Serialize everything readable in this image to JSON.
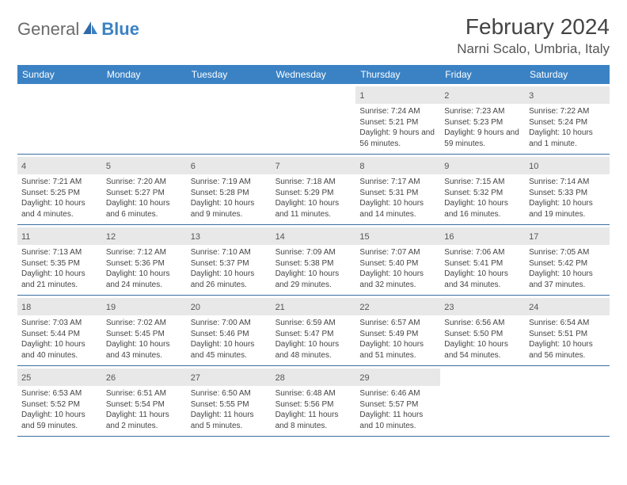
{
  "brand": {
    "part1": "General",
    "part2": "Blue"
  },
  "title": "February 2024",
  "location": "Narni Scalo, Umbria, Italy",
  "colors": {
    "header_bg": "#3b82c4",
    "daynum_bg": "#e8e8e8",
    "week_border": "#3b6fa0",
    "logo_gray": "#6b6b6b",
    "logo_blue": "#3b82c4",
    "text": "#444444"
  },
  "day_names": [
    "Sunday",
    "Monday",
    "Tuesday",
    "Wednesday",
    "Thursday",
    "Friday",
    "Saturday"
  ],
  "weeks": [
    [
      {
        "empty": true
      },
      {
        "empty": true
      },
      {
        "empty": true
      },
      {
        "empty": true
      },
      {
        "n": "1",
        "sr": "7:24 AM",
        "ss": "5:21 PM",
        "dl": "9 hours and 56 minutes."
      },
      {
        "n": "2",
        "sr": "7:23 AM",
        "ss": "5:23 PM",
        "dl": "9 hours and 59 minutes."
      },
      {
        "n": "3",
        "sr": "7:22 AM",
        "ss": "5:24 PM",
        "dl": "10 hours and 1 minute."
      }
    ],
    [
      {
        "n": "4",
        "sr": "7:21 AM",
        "ss": "5:25 PM",
        "dl": "10 hours and 4 minutes."
      },
      {
        "n": "5",
        "sr": "7:20 AM",
        "ss": "5:27 PM",
        "dl": "10 hours and 6 minutes."
      },
      {
        "n": "6",
        "sr": "7:19 AM",
        "ss": "5:28 PM",
        "dl": "10 hours and 9 minutes."
      },
      {
        "n": "7",
        "sr": "7:18 AM",
        "ss": "5:29 PM",
        "dl": "10 hours and 11 minutes."
      },
      {
        "n": "8",
        "sr": "7:17 AM",
        "ss": "5:31 PM",
        "dl": "10 hours and 14 minutes."
      },
      {
        "n": "9",
        "sr": "7:15 AM",
        "ss": "5:32 PM",
        "dl": "10 hours and 16 minutes."
      },
      {
        "n": "10",
        "sr": "7:14 AM",
        "ss": "5:33 PM",
        "dl": "10 hours and 19 minutes."
      }
    ],
    [
      {
        "n": "11",
        "sr": "7:13 AM",
        "ss": "5:35 PM",
        "dl": "10 hours and 21 minutes."
      },
      {
        "n": "12",
        "sr": "7:12 AM",
        "ss": "5:36 PM",
        "dl": "10 hours and 24 minutes."
      },
      {
        "n": "13",
        "sr": "7:10 AM",
        "ss": "5:37 PM",
        "dl": "10 hours and 26 minutes."
      },
      {
        "n": "14",
        "sr": "7:09 AM",
        "ss": "5:38 PM",
        "dl": "10 hours and 29 minutes."
      },
      {
        "n": "15",
        "sr": "7:07 AM",
        "ss": "5:40 PM",
        "dl": "10 hours and 32 minutes."
      },
      {
        "n": "16",
        "sr": "7:06 AM",
        "ss": "5:41 PM",
        "dl": "10 hours and 34 minutes."
      },
      {
        "n": "17",
        "sr": "7:05 AM",
        "ss": "5:42 PM",
        "dl": "10 hours and 37 minutes."
      }
    ],
    [
      {
        "n": "18",
        "sr": "7:03 AM",
        "ss": "5:44 PM",
        "dl": "10 hours and 40 minutes."
      },
      {
        "n": "19",
        "sr": "7:02 AM",
        "ss": "5:45 PM",
        "dl": "10 hours and 43 minutes."
      },
      {
        "n": "20",
        "sr": "7:00 AM",
        "ss": "5:46 PM",
        "dl": "10 hours and 45 minutes."
      },
      {
        "n": "21",
        "sr": "6:59 AM",
        "ss": "5:47 PM",
        "dl": "10 hours and 48 minutes."
      },
      {
        "n": "22",
        "sr": "6:57 AM",
        "ss": "5:49 PM",
        "dl": "10 hours and 51 minutes."
      },
      {
        "n": "23",
        "sr": "6:56 AM",
        "ss": "5:50 PM",
        "dl": "10 hours and 54 minutes."
      },
      {
        "n": "24",
        "sr": "6:54 AM",
        "ss": "5:51 PM",
        "dl": "10 hours and 56 minutes."
      }
    ],
    [
      {
        "n": "25",
        "sr": "6:53 AM",
        "ss": "5:52 PM",
        "dl": "10 hours and 59 minutes."
      },
      {
        "n": "26",
        "sr": "6:51 AM",
        "ss": "5:54 PM",
        "dl": "11 hours and 2 minutes."
      },
      {
        "n": "27",
        "sr": "6:50 AM",
        "ss": "5:55 PM",
        "dl": "11 hours and 5 minutes."
      },
      {
        "n": "28",
        "sr": "6:48 AM",
        "ss": "5:56 PM",
        "dl": "11 hours and 8 minutes."
      },
      {
        "n": "29",
        "sr": "6:46 AM",
        "ss": "5:57 PM",
        "dl": "11 hours and 10 minutes."
      },
      {
        "empty": true
      },
      {
        "empty": true
      }
    ]
  ],
  "labels": {
    "sunrise": "Sunrise: ",
    "sunset": "Sunset: ",
    "daylight": "Daylight: "
  }
}
